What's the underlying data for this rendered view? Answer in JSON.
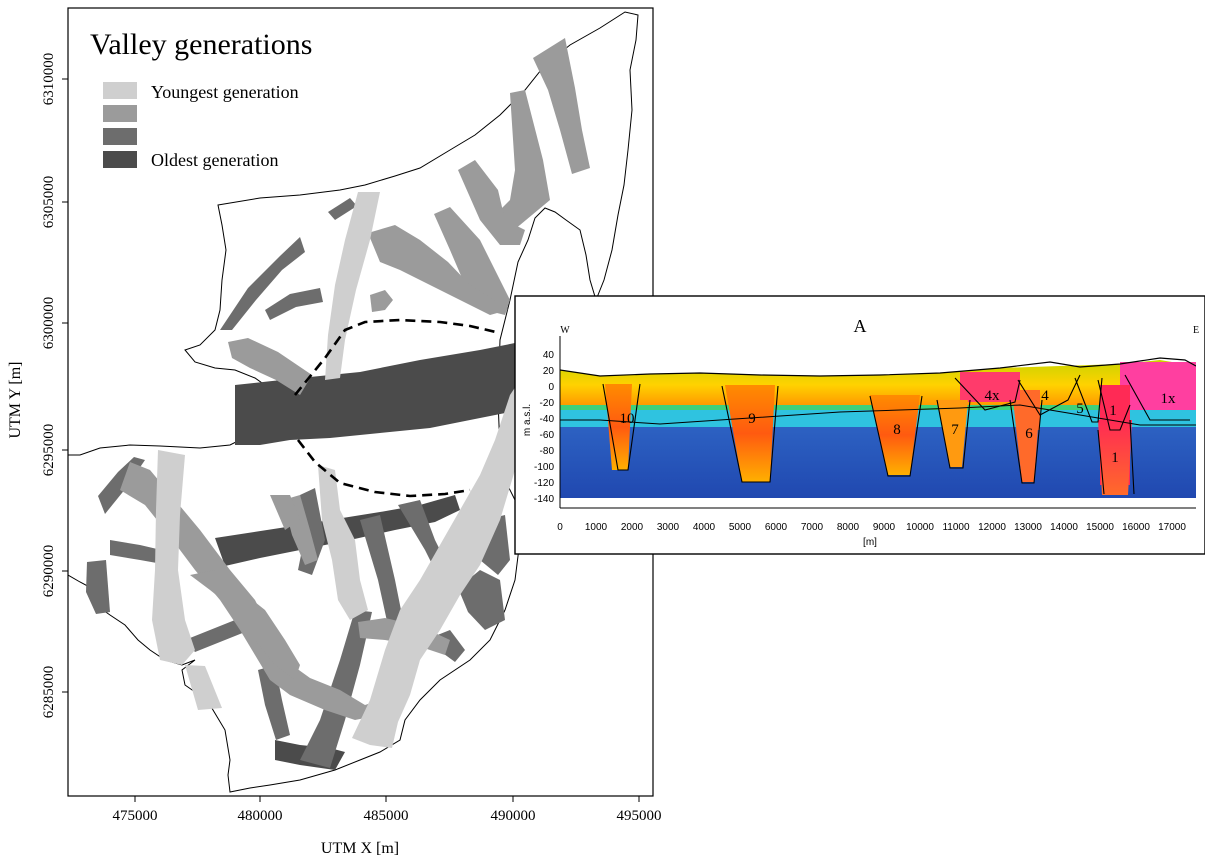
{
  "map": {
    "title": "Valley generations",
    "legend": [
      {
        "label": "Youngest generation",
        "color": "#cfcfcf"
      },
      {
        "label": "",
        "color": "#9b9b9b"
      },
      {
        "label": "",
        "color": "#6d6d6d"
      },
      {
        "label": "Oldest generation",
        "color": "#4b4b4b"
      }
    ],
    "x_axis_label": "UTM X [m]",
    "y_axis_label": "UTM Y [m]",
    "x_ticks": [
      "475000",
      "480000",
      "485000",
      "490000",
      "495000"
    ],
    "y_ticks": [
      "6285000",
      "6290000",
      "6295000",
      "6300000",
      "6305000",
      "6310000"
    ]
  },
  "profile": {
    "title": "A",
    "west_label": "W",
    "east_label": "E",
    "y_axis_label": "m a.s.l.",
    "x_axis_label": "[m]",
    "y_ticks": [
      "40",
      "20",
      "0",
      "-20",
      "-40",
      "-60",
      "-80",
      "-100",
      "-120",
      "-140"
    ],
    "x_ticks": [
      "0",
      "1000",
      "2000",
      "3000",
      "4000",
      "5000",
      "6000",
      "7000",
      "8000",
      "9000",
      "10000",
      "11000",
      "12000",
      "13000",
      "14000",
      "15000",
      "16000",
      "17000"
    ],
    "valley_labels": [
      "10",
      "9",
      "8",
      "7",
      "6",
      "4x",
      "4",
      "5",
      "1",
      "1",
      "1x"
    ]
  }
}
